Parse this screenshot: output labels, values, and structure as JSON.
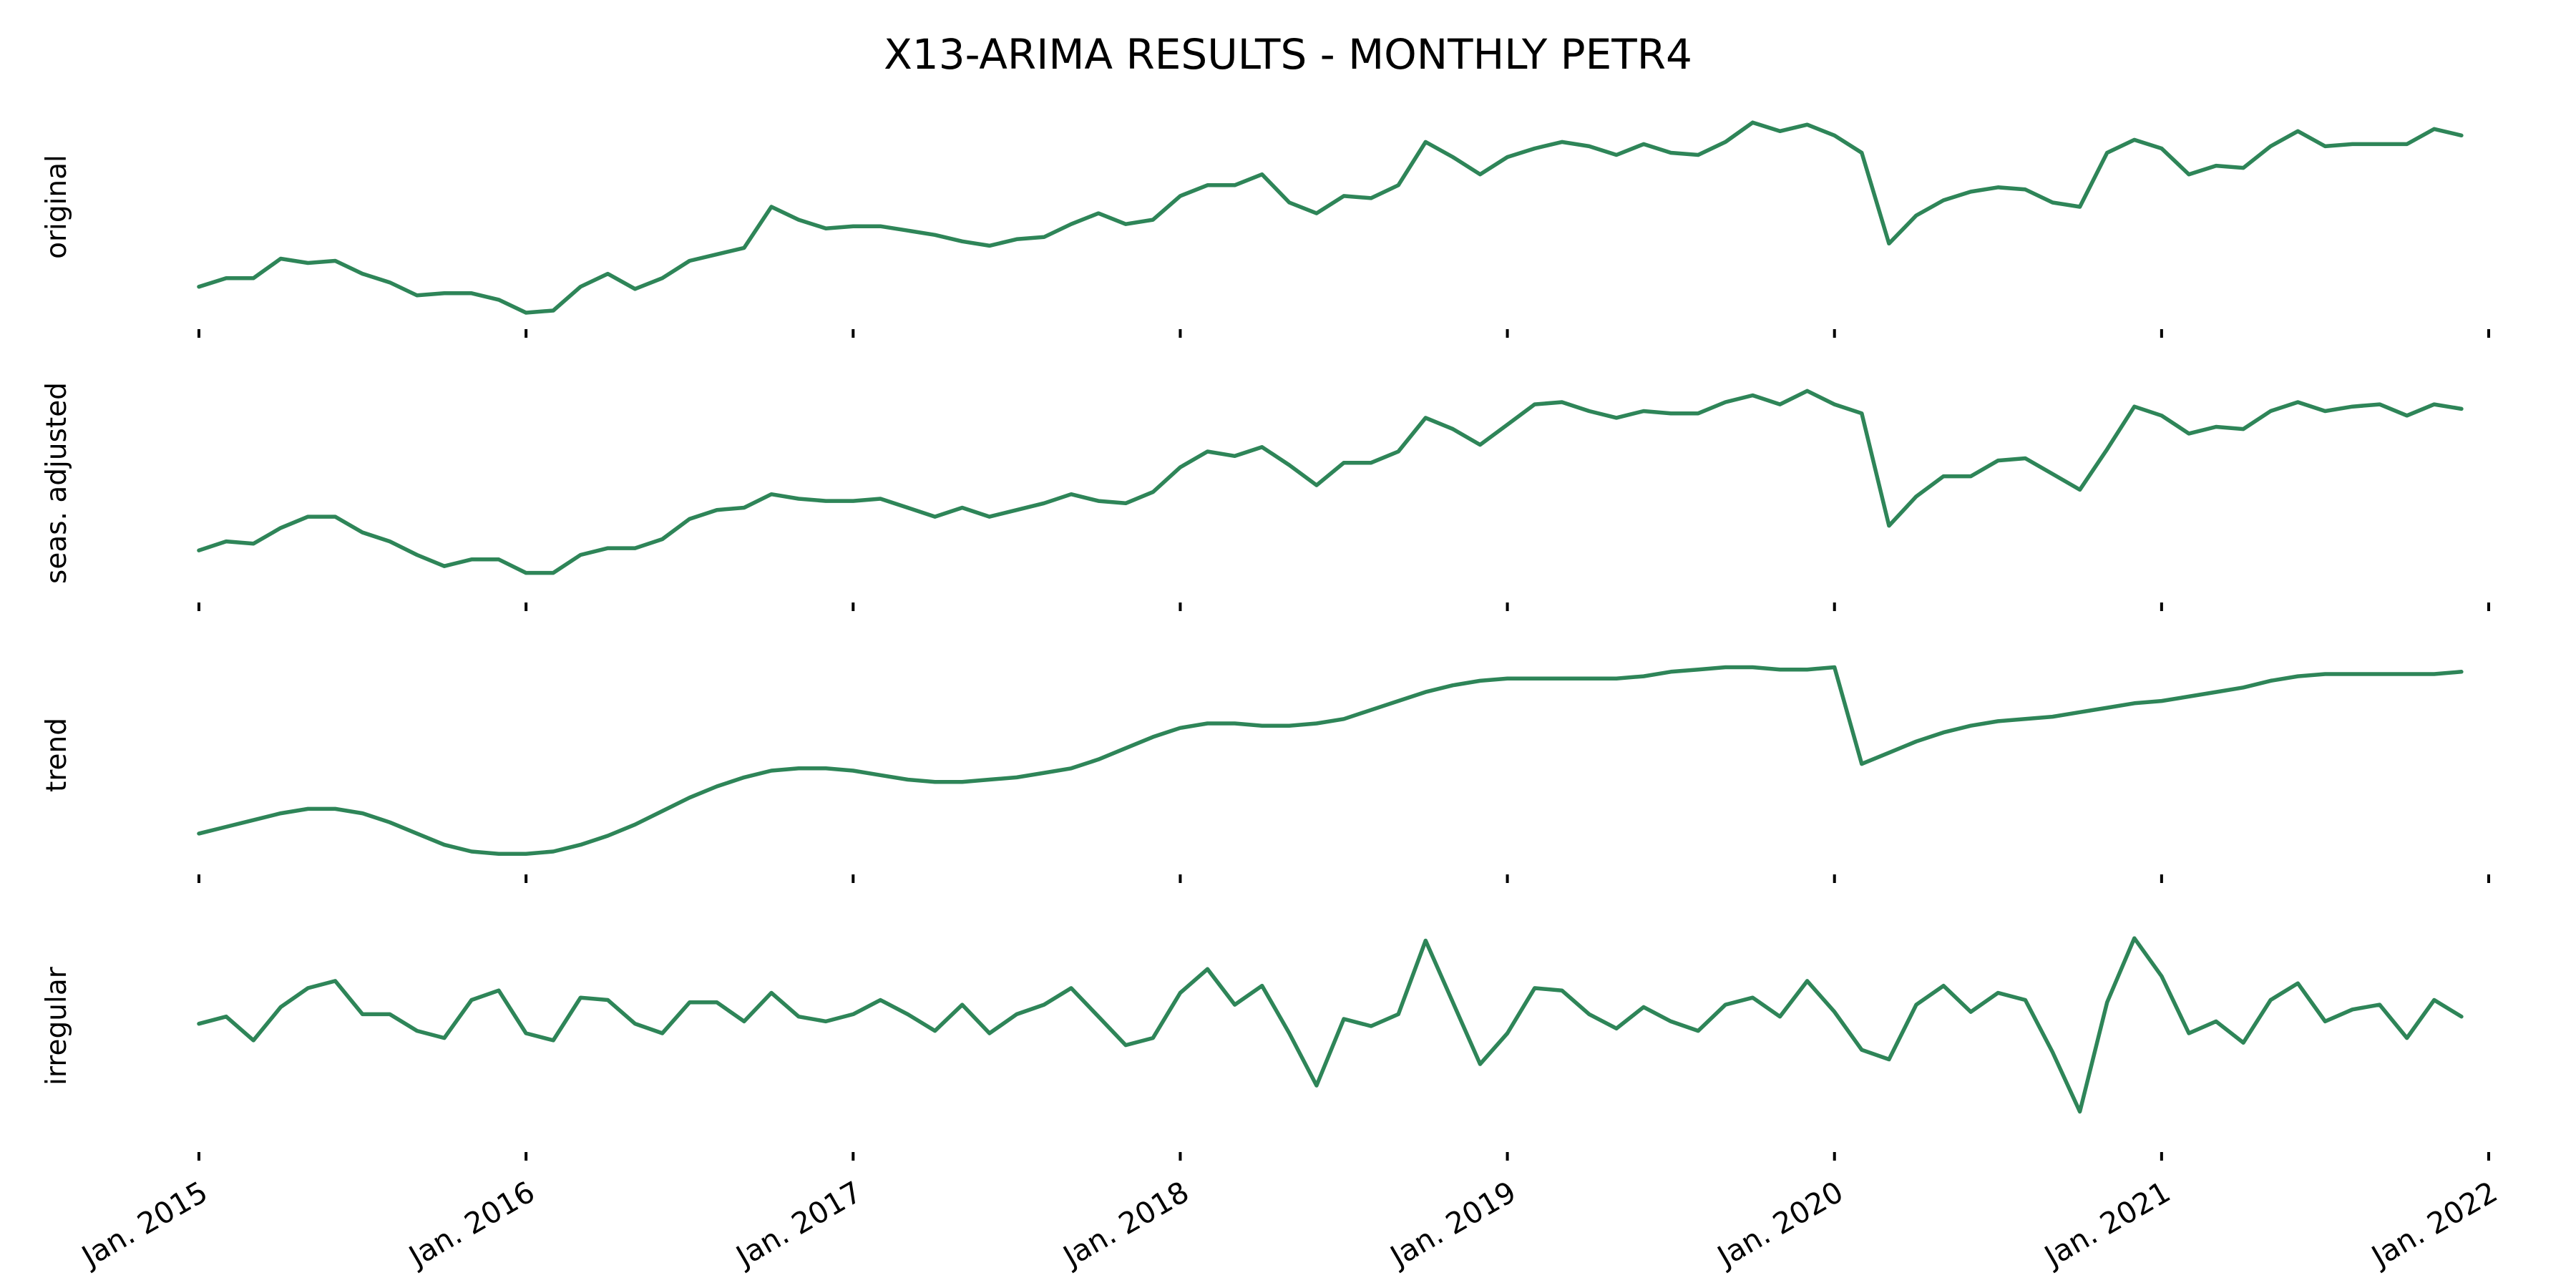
{
  "chart_data": {
    "type": "line",
    "title": "X13-ARIMA RESULTS - MONTHLY PETR4",
    "line_color": "#2e8558",
    "x_start": "2015-01",
    "x_frequency": "monthly",
    "x_tick_labels": [
      "Jan. 2015",
      "Jan. 2016",
      "Jan. 2017",
      "Jan. 2018",
      "Jan. 2019",
      "Jan. 2020",
      "Jan. 2021",
      "Jan. 2022"
    ],
    "x_range": [
      "2015-01",
      "2022-01"
    ],
    "y_axis_labels_shown": false,
    "grid": false,
    "legend": "none",
    "panels": [
      {
        "name": "original",
        "ylim": [
          0.0,
          1.0
        ],
        "values": [
          0.13,
          0.17,
          0.17,
          0.26,
          0.24,
          0.25,
          0.19,
          0.15,
          0.09,
          0.1,
          0.1,
          0.07,
          0.01,
          0.02,
          0.13,
          0.19,
          0.12,
          0.17,
          0.25,
          0.28,
          0.31,
          0.5,
          0.44,
          0.4,
          0.41,
          0.41,
          0.39,
          0.37,
          0.34,
          0.32,
          0.35,
          0.36,
          0.42,
          0.47,
          0.42,
          0.44,
          0.55,
          0.6,
          0.6,
          0.65,
          0.52,
          0.47,
          0.55,
          0.54,
          0.6,
          0.8,
          0.73,
          0.65,
          0.73,
          0.77,
          0.8,
          0.78,
          0.74,
          0.79,
          0.75,
          0.74,
          0.8,
          0.89,
          0.85,
          0.88,
          0.83,
          0.75,
          0.33,
          0.46,
          0.53,
          0.57,
          0.59,
          0.58,
          0.52,
          0.5,
          0.75,
          0.81,
          0.77,
          0.65,
          0.69,
          0.68,
          0.78,
          0.85,
          0.78,
          0.79,
          0.79,
          0.79,
          0.86,
          0.83
        ]
      },
      {
        "name": "seas. adjusted",
        "ylim": [
          0.0,
          1.0
        ],
        "values": [
          0.2,
          0.24,
          0.23,
          0.3,
          0.35,
          0.35,
          0.28,
          0.24,
          0.18,
          0.13,
          0.16,
          0.16,
          0.1,
          0.1,
          0.18,
          0.21,
          0.21,
          0.25,
          0.34,
          0.38,
          0.39,
          0.45,
          0.43,
          0.42,
          0.42,
          0.43,
          0.39,
          0.35,
          0.39,
          0.35,
          0.38,
          0.41,
          0.45,
          0.42,
          0.41,
          0.46,
          0.57,
          0.64,
          0.62,
          0.66,
          0.58,
          0.49,
          0.59,
          0.59,
          0.64,
          0.79,
          0.74,
          0.67,
          0.76,
          0.85,
          0.86,
          0.82,
          0.79,
          0.82,
          0.81,
          0.81,
          0.86,
          0.89,
          0.85,
          0.91,
          0.85,
          0.81,
          0.31,
          0.44,
          0.53,
          0.53,
          0.6,
          0.61,
          0.54,
          0.47,
          0.65,
          0.84,
          0.8,
          0.72,
          0.75,
          0.74,
          0.82,
          0.86,
          0.82,
          0.84,
          0.85,
          0.8,
          0.85,
          0.83
        ]
      },
      {
        "name": "trend",
        "ylim": [
          0.0,
          1.0
        ],
        "values": [
          0.15,
          0.18,
          0.21,
          0.24,
          0.26,
          0.26,
          0.24,
          0.2,
          0.15,
          0.1,
          0.07,
          0.06,
          0.06,
          0.07,
          0.1,
          0.14,
          0.19,
          0.25,
          0.31,
          0.36,
          0.4,
          0.43,
          0.44,
          0.44,
          0.43,
          0.41,
          0.39,
          0.38,
          0.38,
          0.39,
          0.4,
          0.42,
          0.44,
          0.48,
          0.53,
          0.58,
          0.62,
          0.64,
          0.64,
          0.63,
          0.63,
          0.64,
          0.66,
          0.7,
          0.74,
          0.78,
          0.81,
          0.83,
          0.84,
          0.84,
          0.84,
          0.84,
          0.84,
          0.85,
          0.87,
          0.88,
          0.89,
          0.89,
          0.88,
          0.88,
          0.89,
          0.46,
          0.51,
          0.56,
          0.6,
          0.63,
          0.65,
          0.66,
          0.67,
          0.69,
          0.71,
          0.73,
          0.74,
          0.76,
          0.78,
          0.8,
          0.83,
          0.85,
          0.86,
          0.86,
          0.86,
          0.86,
          0.86,
          0.87
        ]
      },
      {
        "name": "irregular",
        "ylim": [
          0.0,
          1.0
        ],
        "values": [
          0.51,
          0.54,
          0.44,
          0.58,
          0.66,
          0.69,
          0.55,
          0.55,
          0.48,
          0.45,
          0.61,
          0.65,
          0.47,
          0.44,
          0.62,
          0.61,
          0.51,
          0.47,
          0.6,
          0.6,
          0.52,
          0.64,
          0.54,
          0.52,
          0.55,
          0.61,
          0.55,
          0.48,
          0.59,
          0.47,
          0.55,
          0.59,
          0.66,
          0.54,
          0.42,
          0.45,
          0.64,
          0.74,
          0.59,
          0.67,
          0.47,
          0.25,
          0.53,
          0.5,
          0.55,
          0.86,
          0.6,
          0.34,
          0.47,
          0.66,
          0.65,
          0.55,
          0.49,
          0.58,
          0.52,
          0.48,
          0.59,
          0.62,
          0.54,
          0.69,
          0.56,
          0.4,
          0.36,
          0.59,
          0.67,
          0.56,
          0.64,
          0.61,
          0.39,
          0.14,
          0.6,
          0.87,
          0.71,
          0.47,
          0.52,
          0.43,
          0.61,
          0.68,
          0.52,
          0.57,
          0.59,
          0.45,
          0.61,
          0.54
        ]
      }
    ]
  }
}
